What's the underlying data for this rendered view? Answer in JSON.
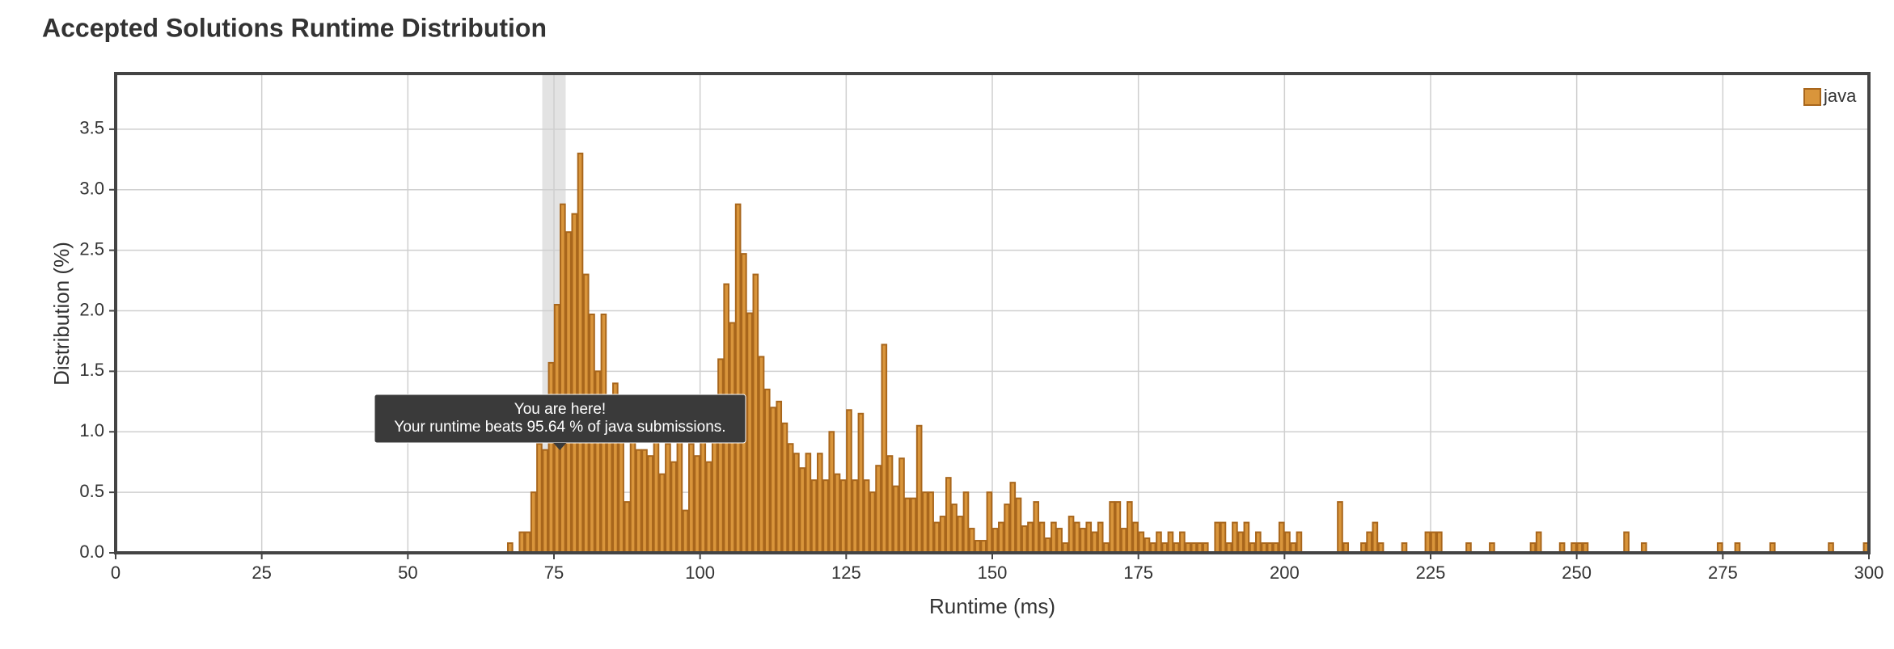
{
  "chart_data": {
    "type": "histogram",
    "title": "Accepted Solutions Runtime Distribution",
    "xlabel": "Runtime (ms)",
    "ylabel": "Distribution (%)",
    "xlim": [
      0,
      300
    ],
    "ylim": [
      0,
      3.96
    ],
    "xticks": [
      0,
      25,
      50,
      75,
      100,
      125,
      150,
      175,
      200,
      225,
      250,
      275,
      300
    ],
    "yticks": [
      {
        "value": 0,
        "label": "0.0"
      },
      0.5,
      {
        "value": 1,
        "label": "1.0"
      },
      1.5,
      {
        "value": 2,
        "label": "2.0"
      },
      2.5,
      {
        "value": 3,
        "label": "3.0"
      },
      3.5
    ],
    "grid": true,
    "legend": "top-right",
    "highlight_x": [
      73,
      77
    ],
    "annotation": {
      "title": "You are here!",
      "text": "Your runtime beats 95.64 % of java submissions.",
      "x": 76
    },
    "series": [
      {
        "name": "java",
        "color": "#d9953b",
        "x": [
          67,
          69,
          70,
          71,
          72,
          73,
          74,
          75,
          76,
          77,
          78,
          79,
          80,
          81,
          82,
          83,
          84,
          85,
          86,
          87,
          88,
          89,
          90,
          91,
          92,
          93,
          94,
          95,
          96,
          97,
          98,
          99,
          100,
          101,
          102,
          103,
          104,
          105,
          106,
          107,
          108,
          109,
          110,
          111,
          112,
          113,
          114,
          115,
          116,
          117,
          118,
          119,
          120,
          121,
          122,
          123,
          124,
          125,
          126,
          127,
          128,
          129,
          130,
          131,
          132,
          133,
          134,
          135,
          136,
          137,
          138,
          139,
          140,
          141,
          142,
          143,
          144,
          145,
          146,
          147,
          148,
          149,
          150,
          151,
          152,
          153,
          154,
          155,
          156,
          157,
          158,
          159,
          160,
          161,
          162,
          163,
          164,
          165,
          166,
          167,
          168,
          169,
          170,
          171,
          172,
          173,
          174,
          175,
          176,
          177,
          178,
          179,
          180,
          181,
          182,
          183,
          184,
          185,
          186,
          188,
          189,
          190,
          191,
          192,
          193,
          194,
          195,
          196,
          197,
          198,
          199,
          200,
          201,
          202,
          209,
          210,
          213,
          214,
          215,
          216,
          220,
          224,
          225,
          226,
          231,
          235,
          242,
          243,
          247,
          249,
          250,
          251,
          258,
          261,
          274,
          277,
          283,
          293,
          299
        ],
        "values": [
          0.08,
          0.17,
          0.17,
          0.5,
          0.9,
          0.85,
          1.57,
          2.05,
          2.88,
          2.65,
          2.8,
          3.3,
          2.3,
          1.97,
          1.5,
          1.97,
          1.2,
          1.4,
          1.0,
          0.42,
          1.0,
          0.85,
          0.85,
          0.8,
          1.0,
          0.65,
          0.9,
          0.75,
          1.15,
          0.35,
          0.9,
          0.8,
          0.95,
          0.75,
          1.3,
          1.6,
          2.22,
          1.9,
          2.88,
          2.47,
          1.98,
          2.3,
          1.62,
          1.35,
          1.2,
          1.25,
          1.07,
          0.9,
          0.82,
          0.7,
          0.82,
          0.6,
          0.82,
          0.6,
          1.0,
          0.65,
          0.6,
          1.18,
          0.6,
          1.15,
          0.6,
          0.5,
          0.72,
          1.72,
          0.8,
          0.55,
          0.78,
          0.45,
          0.45,
          1.05,
          0.5,
          0.5,
          0.25,
          0.3,
          0.62,
          0.4,
          0.3,
          0.5,
          0.2,
          0.1,
          0.1,
          0.5,
          0.2,
          0.25,
          0.4,
          0.58,
          0.45,
          0.22,
          0.25,
          0.42,
          0.25,
          0.12,
          0.25,
          0.2,
          0.08,
          0.3,
          0.25,
          0.2,
          0.25,
          0.17,
          0.25,
          0.08,
          0.42,
          0.42,
          0.2,
          0.42,
          0.25,
          0.17,
          0.12,
          0.08,
          0.17,
          0.08,
          0.17,
          0.08,
          0.17,
          0.08,
          0.08,
          0.08,
          0.08,
          0.25,
          0.25,
          0.08,
          0.25,
          0.17,
          0.25,
          0.08,
          0.17,
          0.08,
          0.08,
          0.08,
          0.25,
          0.17,
          0.08,
          0.17,
          0.42,
          0.08,
          0.08,
          0.17,
          0.25,
          0.08,
          0.08,
          0.17,
          0.17,
          0.17,
          0.08,
          0.08,
          0.08,
          0.17,
          0.08,
          0.08,
          0.08,
          0.08,
          0.17,
          0.08,
          0.08,
          0.08,
          0.08,
          0.08,
          0.08
        ]
      }
    ]
  }
}
